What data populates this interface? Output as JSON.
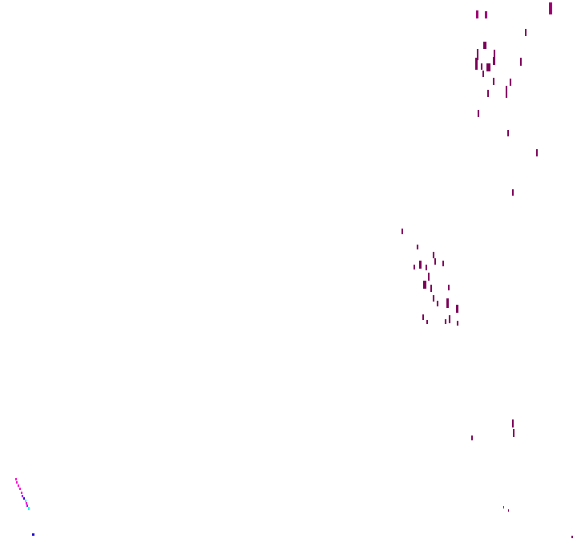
{
  "colors": {
    "background": "#ffffff",
    "primary_mark": "#7a0057",
    "bright_mark": "#9b006e",
    "magenta": "#ff00cc",
    "violet": "#9900ff",
    "blue": "#1a00cc",
    "cyan": "#00ffee"
  }
}
